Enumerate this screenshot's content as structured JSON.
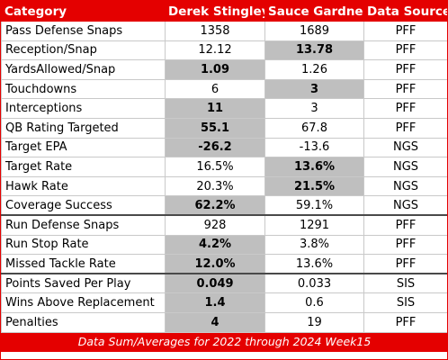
{
  "header": {
    "category": "Category",
    "player1": "Derek Stingley",
    "player2": "Sauce Gardner",
    "source": "Data Source"
  },
  "rows": [
    {
      "category": "Pass Defense Snaps",
      "p1": "1358",
      "p2": "1689",
      "source": "PFF",
      "best": ""
    },
    {
      "category": "Reception/Snap",
      "p1": "12.12",
      "p2": "13.78",
      "source": "PFF",
      "best": "p2"
    },
    {
      "category": "YardsAllowed/Snap",
      "p1": "1.09",
      "p2": "1.26",
      "source": "PFF",
      "best": "p1"
    },
    {
      "category": "Touchdowns",
      "p1": "6",
      "p2": "3",
      "source": "PFF",
      "best": "p2"
    },
    {
      "category": "Interceptions",
      "p1": "11",
      "p2": "3",
      "source": "PFF",
      "best": "p1"
    },
    {
      "category": "QB Rating Targeted",
      "p1": "55.1",
      "p2": "67.8",
      "source": "PFF",
      "best": "p1"
    },
    {
      "category": "Target EPA",
      "p1": "-26.2",
      "p2": "-13.6",
      "source": "NGS",
      "best": "p1"
    },
    {
      "category": "Target Rate",
      "p1": "16.5%",
      "p2": "13.6%",
      "source": "NGS",
      "best": "p2"
    },
    {
      "category": "Hawk Rate",
      "p1": "20.3%",
      "p2": "21.5%",
      "source": "NGS",
      "best": "p2"
    },
    {
      "category": "Coverage Success",
      "p1": "62.2%",
      "p2": "59.1%",
      "source": "NGS",
      "best": "p1"
    },
    {
      "category": "Run Defense Snaps",
      "p1": "928",
      "p2": "1291",
      "source": "PFF",
      "best": ""
    },
    {
      "category": "Run Stop Rate",
      "p1": "4.2%",
      "p2": "3.8%",
      "source": "PFF",
      "best": "p1"
    },
    {
      "category": "Missed Tackle Rate",
      "p1": "12.0%",
      "p2": "13.6%",
      "source": "PFF",
      "best": "p1"
    },
    {
      "category": "Points Saved Per Play",
      "p1": "0.049",
      "p2": "0.033",
      "source": "SIS",
      "best": "p1"
    },
    {
      "category": "Wins Above Replacement",
      "p1": "1.4",
      "p2": "0.6",
      "source": "SIS",
      "best": "p1"
    },
    {
      "category": "Penalties",
      "p1": "4",
      "p2": "19",
      "source": "PFF",
      "best": "p1"
    }
  ],
  "footer": "Data Sum/Averages for 2022 through 2024 Week15",
  "colors": {
    "header_bg": "#e40000",
    "highlight_bg": "#bfbfbf"
  }
}
